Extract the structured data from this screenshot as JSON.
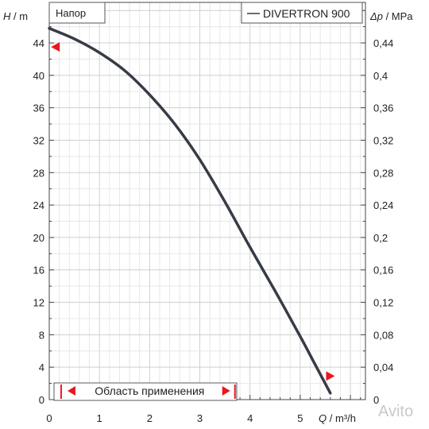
{
  "chart_data": {
    "type": "line",
    "title": "",
    "series_label": "Напор",
    "legend": {
      "entry": "DIVERTRON 900",
      "placement": "top-right"
    },
    "xlabel": {
      "symbol": "Q",
      "unit": " / m³/h"
    },
    "ylabel": {
      "symbol": "H",
      "unit": " / m"
    },
    "y2label": {
      "symbol": "Δp",
      "unit": " / MPa"
    },
    "xlim": [
      0,
      6.3
    ],
    "ylim": [
      0,
      49
    ],
    "y2_factor": 0.01,
    "x_ticks": [
      "0",
      "1",
      "2",
      "3",
      "4",
      "5"
    ],
    "y_ticks": [
      "0",
      "4",
      "8",
      "12",
      "16",
      "20",
      "24",
      "28",
      "32",
      "36",
      "40",
      "44"
    ],
    "y2_ticks": [
      "0",
      "0,04",
      "0,08",
      "0,12",
      "0,16",
      "0,2",
      "0,24",
      "0,28",
      "0,32",
      "0,36",
      "0,4",
      "0,44"
    ],
    "grid": true,
    "series": [
      {
        "name": "DIVERTRON 900",
        "color": "#363c46",
        "x": [
          0,
          0.5,
          1.0,
          1.5,
          2.0,
          2.5,
          3.0,
          3.5,
          4.0,
          4.5,
          5.0,
          5.3,
          5.6
        ],
        "y": [
          45.8,
          44.5,
          42.8,
          40.6,
          37.6,
          34.0,
          29.6,
          24.4,
          18.8,
          13.4,
          7.8,
          4.3,
          0.8
        ]
      }
    ],
    "markers": [
      {
        "x": 0.05,
        "y": 43.5,
        "color": "#e8181e"
      },
      {
        "x": 5.5,
        "y": 2.9,
        "color": "#e8181e"
      }
    ],
    "application_range": {
      "label": "Область применения",
      "from": 0.3,
      "to": 3.7,
      "color": "#e8181e"
    }
  },
  "watermark": "Avito"
}
